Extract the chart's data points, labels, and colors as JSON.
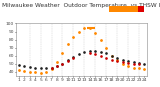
{
  "hours": [
    1,
    2,
    3,
    4,
    5,
    6,
    7,
    8,
    9,
    10,
    11,
    12,
    13,
    14,
    15,
    16,
    17,
    18,
    19,
    20,
    21,
    22,
    23,
    24
  ],
  "thsw_index": [
    42,
    41,
    40,
    39,
    38,
    39,
    43,
    52,
    63,
    74,
    83,
    90,
    95,
    94,
    88,
    80,
    70,
    60,
    54,
    50,
    47,
    45,
    44,
    43
  ],
  "outdoor_temp": [
    48,
    47,
    46,
    45,
    44,
    44,
    45,
    47,
    50,
    54,
    58,
    62,
    65,
    66,
    66,
    65,
    63,
    60,
    57,
    55,
    53,
    52,
    51,
    50
  ],
  "hi_thsw_x": [
    14
  ],
  "hi_thsw_y": [
    94
  ],
  "red_scatter_x": [
    7,
    8,
    9,
    10,
    11,
    14,
    15,
    16,
    17,
    18,
    19,
    20,
    21,
    22,
    23
  ],
  "red_scatter_y": [
    45,
    47,
    50,
    53,
    57,
    63,
    62,
    60,
    57,
    55,
    53,
    52,
    51,
    50,
    49
  ],
  "ylim": [
    35,
    100
  ],
  "xlim_min": 0.5,
  "xlim_max": 24.5,
  "bg_color": "#ffffff",
  "thsw_color": "#ff8800",
  "temp_color": "#222222",
  "red_color": "#cc0000",
  "hi_bar_color": "#ff8800",
  "legend_orange_color": "#ff8800",
  "legend_red_color": "#dd0000",
  "grid_color": "#bbbbbb",
  "title_color": "#333333",
  "title_fontsize": 4.2,
  "tick_fontsize": 3.2,
  "yticks": [
    40,
    50,
    60,
    70,
    80,
    90,
    100
  ],
  "xticks": [
    1,
    2,
    3,
    4,
    5,
    6,
    7,
    8,
    9,
    10,
    11,
    12,
    13,
    14,
    15,
    16,
    17,
    18,
    19,
    20,
    21,
    22,
    23,
    24
  ],
  "grid_x_positions": [
    3,
    5,
    7,
    9,
    11,
    13,
    15,
    17,
    19,
    21,
    23
  ]
}
